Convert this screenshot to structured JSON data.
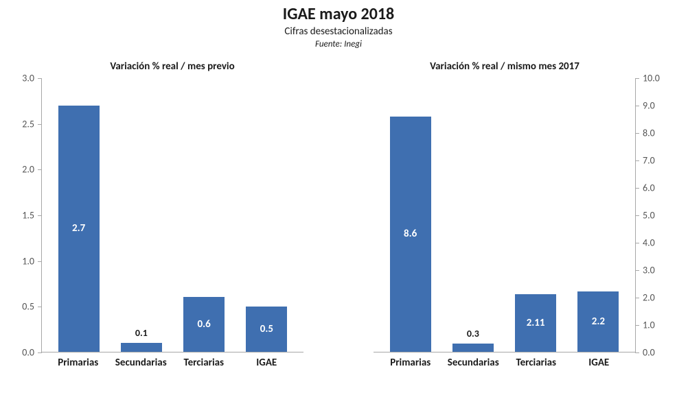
{
  "header": {
    "title": "IGAE mayo 2018",
    "subtitle": "Cifras desestacionalizadas",
    "source": "Fuente: Inegi",
    "title_fontsize": 24,
    "subtitle_fontsize": 15,
    "source_fontsize": 13
  },
  "background_color": "#ffffff",
  "bar_color": "#3f6fb0",
  "grid_color": "#d9d9d9",
  "axis_color": "#a6a6a6",
  "inside_label_color": "#ffffff",
  "outside_label_color": "#1a1a1a",
  "left_chart": {
    "type": "bar",
    "title": "Variación % real / mes previo",
    "y_side": "left",
    "categories": [
      "Primarias",
      "Secundarias",
      "Terciarias",
      "IGAE"
    ],
    "values": [
      2.7,
      0.1,
      0.6,
      0.5
    ],
    "value_labels": [
      "2.7",
      "0.1",
      "0.6",
      "0.5"
    ],
    "label_placement": [
      "inside",
      "above",
      "inside",
      "inside"
    ],
    "ylim": [
      0.0,
      3.0
    ],
    "ytick_step": 0.5,
    "yticks": [
      "0.0",
      "0.5",
      "1.0",
      "1.5",
      "2.0",
      "2.5",
      "3.0"
    ],
    "bar_width": 0.66,
    "label_fontsize": 15,
    "cat_fontsize": 15,
    "tick_fontsize": 14
  },
  "right_chart": {
    "type": "bar",
    "title": "Variación % real / mismo mes 2017",
    "y_side": "right",
    "categories": [
      "Primarias",
      "Secundarias",
      "Terciarias",
      "IGAE"
    ],
    "values": [
      8.6,
      0.3,
      2.11,
      2.2
    ],
    "value_labels": [
      "8.6",
      "0.3",
      "2.11",
      "2.2"
    ],
    "label_placement": [
      "inside",
      "above",
      "inside",
      "inside"
    ],
    "ylim": [
      0.0,
      10.0
    ],
    "ytick_step": 1.0,
    "yticks": [
      "0.0",
      "1.0",
      "2.0",
      "3.0",
      "4.0",
      "5.0",
      "6.0",
      "7.0",
      "8.0",
      "9.0",
      "10.0"
    ],
    "bar_width": 0.66,
    "label_fontsize": 15,
    "cat_fontsize": 15,
    "tick_fontsize": 14
  }
}
